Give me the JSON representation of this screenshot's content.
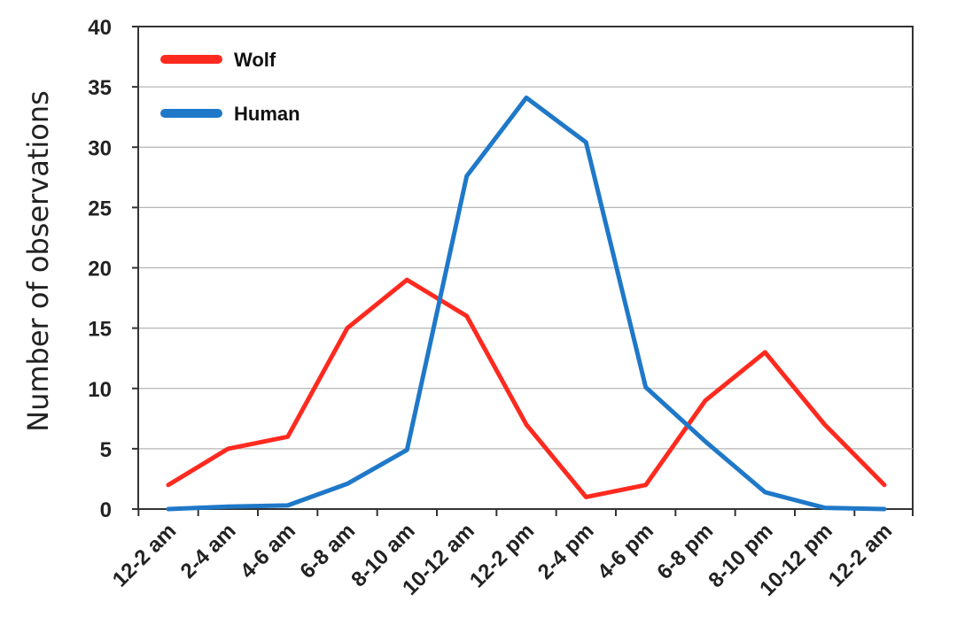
{
  "chart_data": {
    "type": "line",
    "title": "",
    "xlabel": "",
    "ylabel": "Number of observations",
    "ylim": [
      0,
      40
    ],
    "yticks": [
      0,
      5,
      10,
      15,
      20,
      25,
      30,
      35,
      40
    ],
    "categories": [
      "12-2 am",
      "2-4 am",
      "4-6 am",
      "6-8 am",
      "8-10 am",
      "10-12 am",
      "12-2 pm",
      "2-4 pm",
      "4-6 pm",
      "6-8 pm",
      "8-10 pm",
      "10-12 pm",
      "12-2 am"
    ],
    "grid": true,
    "legend": "top-left",
    "series": [
      {
        "name": "Wolf",
        "color": "#ff2a1f",
        "values": [
          2,
          5,
          6,
          15,
          19,
          16,
          7,
          1,
          2,
          9,
          13,
          7,
          2
        ]
      },
      {
        "name": "Human",
        "color": "#1f78c8",
        "values": [
          0,
          0.2,
          0.3,
          2.1,
          4.9,
          27.6,
          34.1,
          30.4,
          10.1,
          5.6,
          1.4,
          0.1,
          0
        ]
      }
    ]
  }
}
